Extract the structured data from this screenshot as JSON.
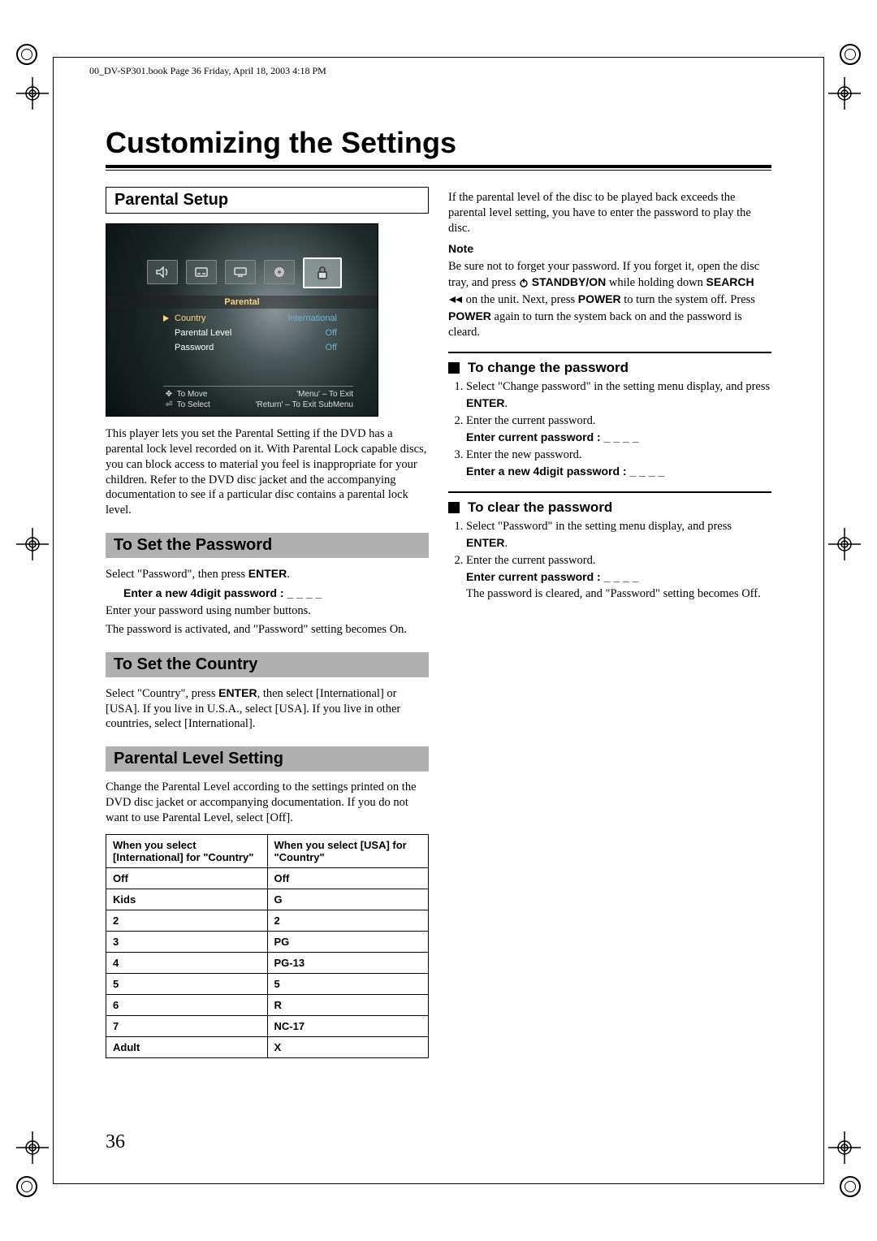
{
  "header": "00_DV-SP301.book  Page 36  Friday, April 18, 2003  4:18 PM",
  "page_number": "36",
  "title": "Customizing the Settings",
  "left": {
    "parental_setup": {
      "heading": "Parental Setup",
      "osd": {
        "title": "Parental",
        "rows": [
          {
            "l": "Country",
            "r": "International"
          },
          {
            "l": "Parental Level",
            "r": "Off"
          },
          {
            "l": "Password",
            "r": "Off"
          }
        ],
        "nav": [
          {
            "l": "To Move",
            "r": "'Menu' – To Exit"
          },
          {
            "l": "To Select",
            "r": "'Return' – To Exit SubMenu"
          }
        ]
      },
      "body": "This player lets you set the Parental Setting if the DVD has a parental lock level recorded on it. With Parental Lock capable discs, you can block access to material you feel is inappropriate for your children. Refer to the DVD disc jacket and the accompanying documentation to see if a particular disc contains a parental lock level."
    },
    "set_password": {
      "heading": "To Set the Password",
      "p1a": "Select \"Password\", then press ",
      "p1b": "ENTER",
      "p1c": ".",
      "prompt": "Enter a new 4digit password : _ _ _ _",
      "p2": "Enter your password using number buttons.",
      "p3": "The password is activated, and \"Password\" setting becomes On."
    },
    "set_country": {
      "heading": "To Set the Country",
      "p1a": "Select \"Country\", press ",
      "p1b": "ENTER",
      "p1c": ", then select [International] or [USA]. If you live in U.S.A., select [USA]. If you live in other countries, select [International]."
    },
    "level": {
      "heading": "Parental Level Setting",
      "body": "Change the Parental Level according to the settings printed on the DVD disc jacket or accompanying documentation. If you do not want to use Parental Level, select [Off].",
      "tbl": {
        "h1": "When you select [International] for \"Country\"",
        "h2": "When you select [USA] for \"Country\"",
        "rows": [
          [
            "Off",
            "Off"
          ],
          [
            "Kids",
            "G"
          ],
          [
            "2",
            "2"
          ],
          [
            "3",
            "PG"
          ],
          [
            "4",
            "PG-13"
          ],
          [
            "5",
            "5"
          ],
          [
            "6",
            "R"
          ],
          [
            "7",
            "NC-17"
          ],
          [
            "Adult",
            "X"
          ]
        ]
      }
    }
  },
  "right": {
    "intro": "If the parental level of the disc to be played back exceeds the parental level setting, you have to enter the password to play the disc.",
    "note_label": "Note",
    "note1": "Be sure not to forget your password. If you forget it, open the disc tray, and press ",
    "note_standby": " STANDBY/ON",
    "note2": " while holding down ",
    "note_search": "SEARCH",
    "note3": " on the unit. Next, press ",
    "note_power": "POWER",
    "note4": " to turn the system off. Press ",
    "note_power2": "POWER",
    "note5": " again to turn the system back on and the password is cleard.",
    "change": {
      "heading": "To change the password",
      "li1a": "Select \"Change password\" in the setting menu display, and press ",
      "li1b": "ENTER",
      "li1c": ".",
      "li2": "Enter the current password.",
      "prompt1": "Enter current password : _ _ _ _",
      "li3": "Enter the new password.",
      "prompt2": "Enter a new 4digit password : _ _ _ _"
    },
    "clear": {
      "heading": "To clear the password",
      "li1a": "Select \"Password\" in the setting menu display, and press ",
      "li1b": "ENTER",
      "li1c": ".",
      "li2": "Enter the current password.",
      "prompt1": "Enter current password : _ _ _ _",
      "p_end": "The password is cleared, and \"Password\" setting becomes Off."
    }
  }
}
